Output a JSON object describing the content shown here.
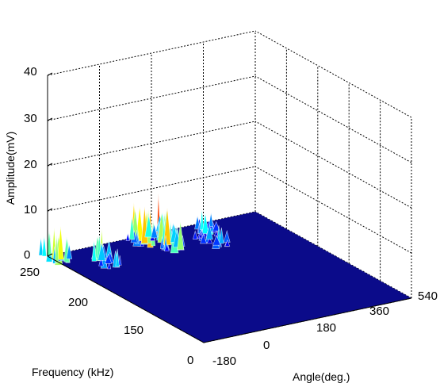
{
  "chart_data": {
    "type": "surface",
    "title": "",
    "xlabel": "Angle(deg.)",
    "ylabel": "Frequency (kHz)",
    "zlabel": "Amplitude(mV)",
    "x_ticks": [
      "-180",
      "0",
      "180",
      "360",
      "540"
    ],
    "y_ticks": [
      "0",
      "150",
      "200",
      "250"
    ],
    "z_ticks": [
      "0",
      "10",
      "20",
      "30",
      "40"
    ],
    "xlim": [
      -180,
      540
    ],
    "ylim": [
      0,
      250
    ],
    "zlim": [
      0,
      40
    ],
    "grid": true,
    "colormap": "jet",
    "peaks": [
      {
        "angle": -170,
        "frequency": 240,
        "amplitude": 10
      },
      {
        "angle": -60,
        "frequency": 210,
        "amplitude": 8
      },
      {
        "angle": 120,
        "frequency": 235,
        "amplitude": 9
      },
      {
        "angle": 185,
        "frequency": 238,
        "amplitude": 11
      },
      {
        "angle": 175,
        "frequency": 215,
        "amplitude": 9
      },
      {
        "angle": 330,
        "frequency": 230,
        "amplitude": 6
      },
      {
        "angle": 300,
        "frequency": 205,
        "amplitude": 5
      }
    ]
  }
}
